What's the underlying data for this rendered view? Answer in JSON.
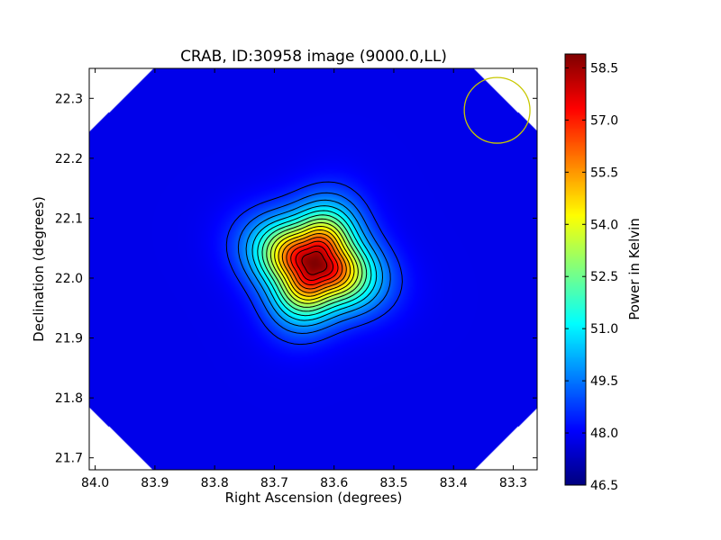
{
  "chart_data": {
    "type": "heatmap",
    "title": "CRAB, ID:30958 image (9000.0,LL)",
    "xlabel": "Right Ascension (degrees)",
    "ylabel": "Declination (degrees)",
    "colorbar_label": "Power in Kelvin",
    "x_range": [
      84.01,
      83.26
    ],
    "y_range": [
      21.68,
      22.35
    ],
    "x_ticks": [
      84.0,
      83.9,
      83.8,
      83.7,
      83.6,
      83.5,
      83.4,
      83.3
    ],
    "x_tick_labels": [
      "84.0",
      "83.9",
      "83.8",
      "83.7",
      "83.6",
      "83.5",
      "83.4",
      "83.3"
    ],
    "y_ticks": [
      21.7,
      21.8,
      21.9,
      22.0,
      22.1,
      22.2,
      22.3
    ],
    "y_tick_labels": [
      "21.7",
      "21.8",
      "21.9",
      "22.0",
      "22.1",
      "22.2",
      "22.3"
    ],
    "colorbar_range": [
      46.5,
      58.9
    ],
    "colorbar_ticks": [
      46.5,
      48.0,
      49.5,
      51.0,
      52.5,
      54.0,
      55.5,
      57.0,
      58.5
    ],
    "colorbar_tick_labels": [
      "46.5",
      "48.0",
      "49.5",
      "51.0",
      "52.5",
      "54.0",
      "55.5",
      "57.0",
      "58.5"
    ],
    "colormap": "jet",
    "background_level": 47.8,
    "peak": {
      "ra": 83.633,
      "dec": 22.025,
      "value": 58.9
    },
    "source_width_deg": {
      "ra_sigma": 0.06,
      "dec_sigma": 0.055
    },
    "contour_levels": [
      48.5,
      49.2,
      49.9,
      50.6,
      51.3,
      52.0,
      52.7,
      53.4,
      54.1,
      54.8,
      55.5,
      56.2,
      56.9,
      57.6,
      58.3
    ],
    "beam_circle": {
      "ra": 83.327,
      "dec": 22.28,
      "radius_deg": 0.055,
      "color": "#c8c800"
    },
    "coverage_mask": "rotated square (diamond) footprint, white outside coverage at the corners",
    "grid": false
  }
}
